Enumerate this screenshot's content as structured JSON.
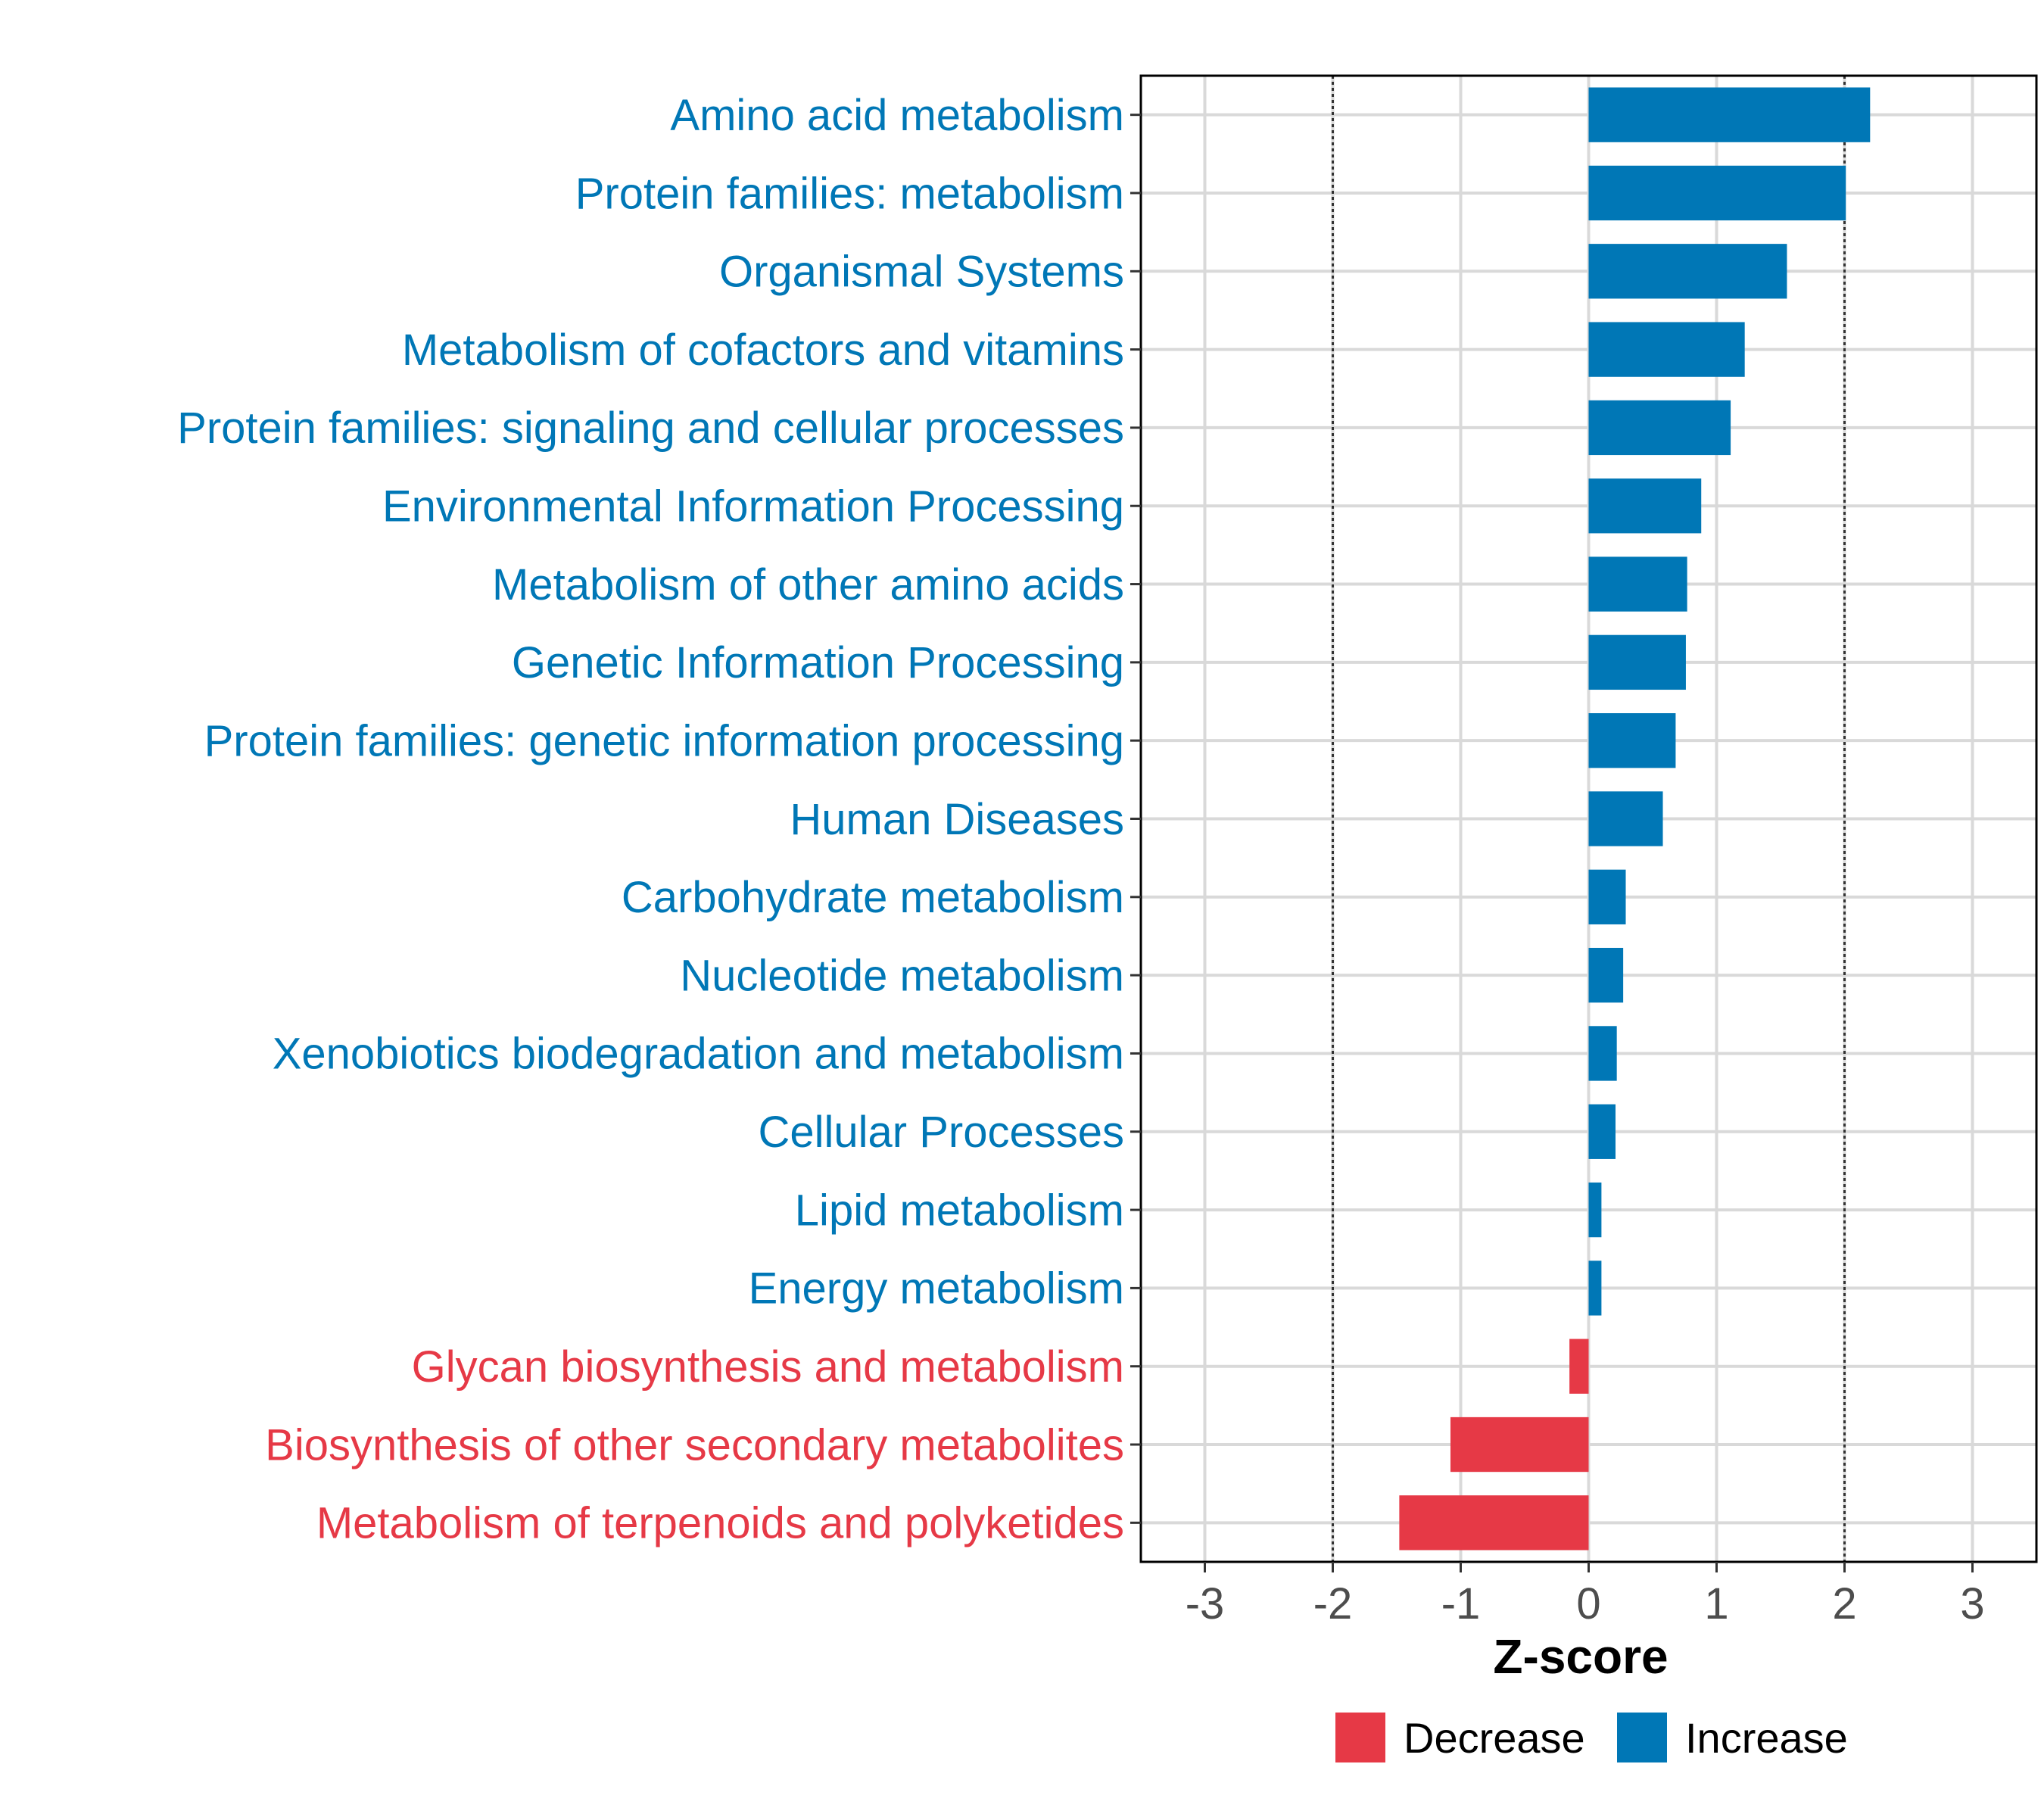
{
  "chart_data": {
    "type": "bar",
    "orientation": "horizontal",
    "categories": [
      "Amino acid metabolism",
      "Protein families: metabolism",
      "Organismal Systems",
      "Metabolism of cofactors and vitamins",
      "Protein families: signaling and cellular processes",
      "Environmental Information Processing",
      "Metabolism of other amino acids",
      "Genetic Information Processing",
      "Protein families: genetic information processing",
      "Human Diseases",
      "Carbohydrate metabolism",
      "Nucleotide metabolism",
      "Xenobiotics biodegradation and metabolism",
      "Cellular Processes",
      "Lipid metabolism",
      "Energy metabolism",
      "Glycan biosynthesis and metabolism",
      "Biosynthesis of other secondary metabolites",
      "Metabolism of terpenoids and polyketides"
    ],
    "values": [
      2.2,
      2.01,
      1.55,
      1.22,
      1.11,
      0.88,
      0.77,
      0.76,
      0.68,
      0.58,
      0.29,
      0.27,
      0.22,
      0.21,
      0.1,
      0.1,
      -0.15,
      -1.08,
      -1.48
    ],
    "groups": [
      "Increase",
      "Increase",
      "Increase",
      "Increase",
      "Increase",
      "Increase",
      "Increase",
      "Increase",
      "Increase",
      "Increase",
      "Increase",
      "Increase",
      "Increase",
      "Increase",
      "Increase",
      "Increase",
      "Decrease",
      "Decrease",
      "Decrease"
    ],
    "xlabel": "Z-score",
    "ylabel": "",
    "xlim": [
      -3.5,
      3.5
    ],
    "xticks": [
      "-3",
      "-2",
      "-1",
      "0",
      "1",
      "2",
      "3"
    ],
    "reference_lines": [
      -2,
      2
    ],
    "grid": true,
    "legend": {
      "placement": "bottom",
      "entries": [
        {
          "label": "Decrease",
          "color": "#E63946"
        },
        {
          "label": "Increase",
          "color": "#0077B6"
        }
      ]
    },
    "colors": {
      "Increase": "#0077B6",
      "Decrease": "#E63946"
    }
  }
}
